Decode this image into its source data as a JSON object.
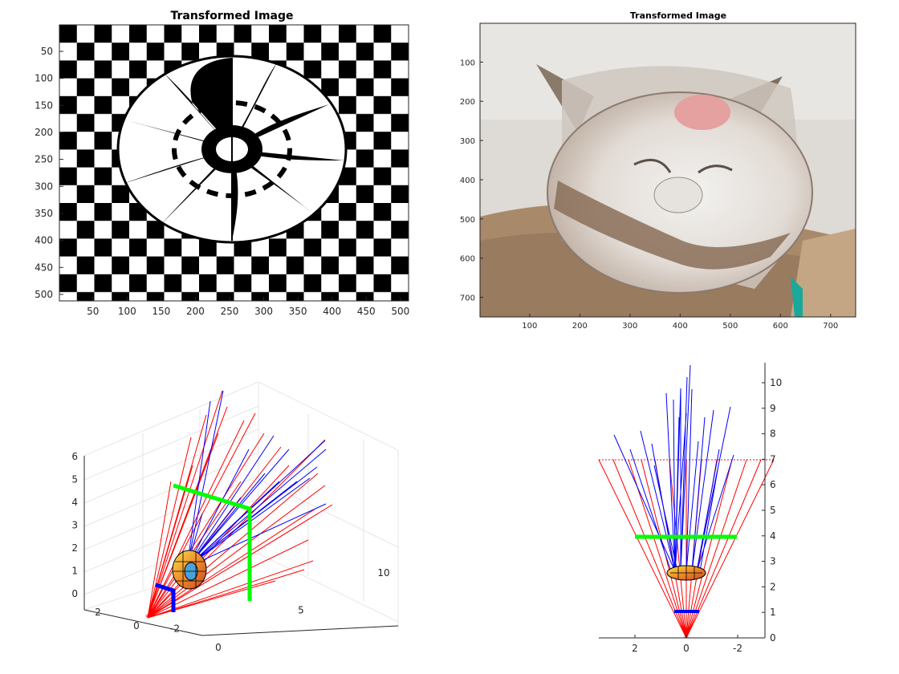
{
  "panels": {
    "checker": {
      "title": "Transformed Image",
      "xticks": [
        "50",
        "100",
        "150",
        "200",
        "250",
        "300",
        "350",
        "400",
        "450",
        "500"
      ],
      "yticks": [
        "50",
        "100",
        "150",
        "200",
        "250",
        "300",
        "350",
        "400",
        "450",
        "500"
      ]
    },
    "cat": {
      "title": "Transformed Image",
      "xticks": [
        "100",
        "200",
        "300",
        "400",
        "500",
        "600",
        "700"
      ],
      "yticks": [
        "100",
        "200",
        "300",
        "400",
        "500",
        "600",
        "700"
      ]
    },
    "scene3d": {
      "zticks": [
        "0",
        "1",
        "2",
        "3",
        "4",
        "5",
        "6"
      ],
      "yticks": [
        "2",
        "0",
        "-2"
      ],
      "xticks": [
        "0",
        "5",
        "10"
      ]
    },
    "front": {
      "yticks": [
        "0",
        "1",
        "2",
        "3",
        "4",
        "5",
        "6",
        "7",
        "8",
        "9",
        "10"
      ],
      "xticks": [
        "2",
        "0",
        "-2"
      ]
    }
  },
  "colors": {
    "ray_incoming": "#ff0000",
    "ray_reflected": "#0000ff",
    "screen": "#00ff00",
    "lens": "#0000ff",
    "checker_dark": "#000000",
    "checker_light": "#ffffff"
  },
  "chart_data": [
    {
      "type": "heatmap",
      "title": "Transformed Image",
      "xlim": [
        1,
        512
      ],
      "ylim": [
        1,
        512
      ],
      "note_content": "checkerboard with circular mirror-reflected anamorphic pattern"
    },
    {
      "type": "heatmap",
      "title": "Transformed Image",
      "xlim": [
        1,
        750
      ],
      "ylim": [
        1,
        750
      ],
      "note_content": "photo of cat with circular mirror-reflected region"
    },
    {
      "type": "line",
      "series": [
        {
          "name": "",
          "color": "#ff0000"
        },
        {
          "name": "",
          "color": "#0000ff"
        }
      ],
      "zlim": [
        0,
        6.5
      ],
      "ylim": [
        -3,
        3
      ],
      "xlim": [
        0,
        12
      ]
    },
    {
      "type": "line",
      "series": [
        {
          "name": "",
          "color": "#ff0000"
        },
        {
          "name": "",
          "color": "#0000ff"
        }
      ],
      "xlim": [
        3.5,
        -3.5
      ],
      "ylim": [
        0,
        10.8
      ]
    }
  ]
}
